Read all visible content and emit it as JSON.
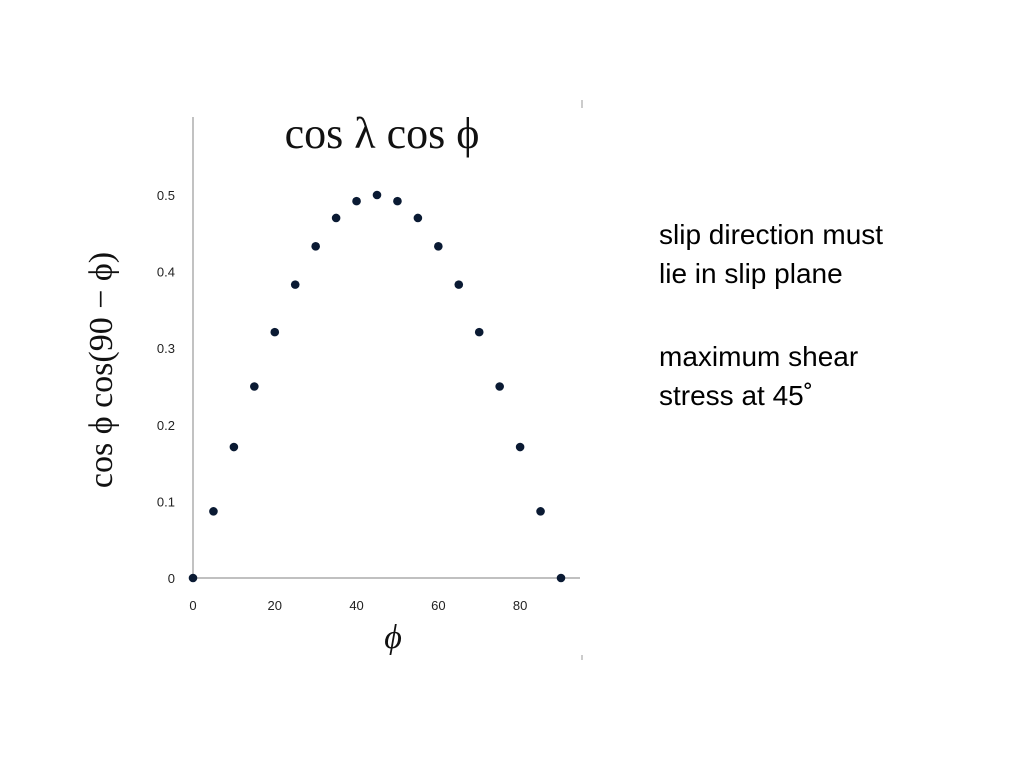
{
  "chart_data": {
    "type": "scatter",
    "title": "cos λ cos ϕ",
    "xlabel": "ϕ",
    "ylabel": "cos ϕ cos(90 − ϕ)",
    "xlim": [
      0,
      90
    ],
    "ylim": [
      0,
      0.5
    ],
    "x_ticks": [
      "0",
      "20",
      "40",
      "60",
      "80"
    ],
    "y_ticks": [
      "0",
      "0.1",
      "0.2",
      "0.3",
      "0.4",
      "0.5"
    ],
    "grid": false,
    "legend": "none",
    "marker_color": "#0a1a33",
    "points": [
      {
        "x": 0,
        "y": 0.0
      },
      {
        "x": 5,
        "y": 0.087
      },
      {
        "x": 10,
        "y": 0.171
      },
      {
        "x": 15,
        "y": 0.25
      },
      {
        "x": 20,
        "y": 0.321
      },
      {
        "x": 25,
        "y": 0.383
      },
      {
        "x": 30,
        "y": 0.433
      },
      {
        "x": 35,
        "y": 0.47
      },
      {
        "x": 40,
        "y": 0.492
      },
      {
        "x": 45,
        "y": 0.5
      },
      {
        "x": 50,
        "y": 0.492
      },
      {
        "x": 55,
        "y": 0.47
      },
      {
        "x": 60,
        "y": 0.433
      },
      {
        "x": 65,
        "y": 0.383
      },
      {
        "x": 70,
        "y": 0.321
      },
      {
        "x": 75,
        "y": 0.25
      },
      {
        "x": 80,
        "y": 0.171
      },
      {
        "x": 85,
        "y": 0.087
      },
      {
        "x": 90,
        "y": 0.0
      }
    ]
  },
  "notes": {
    "line1": "slip direction must",
    "line2": "lie in slip plane",
    "line3": "maximum shear",
    "line4": "stress at 45˚"
  }
}
